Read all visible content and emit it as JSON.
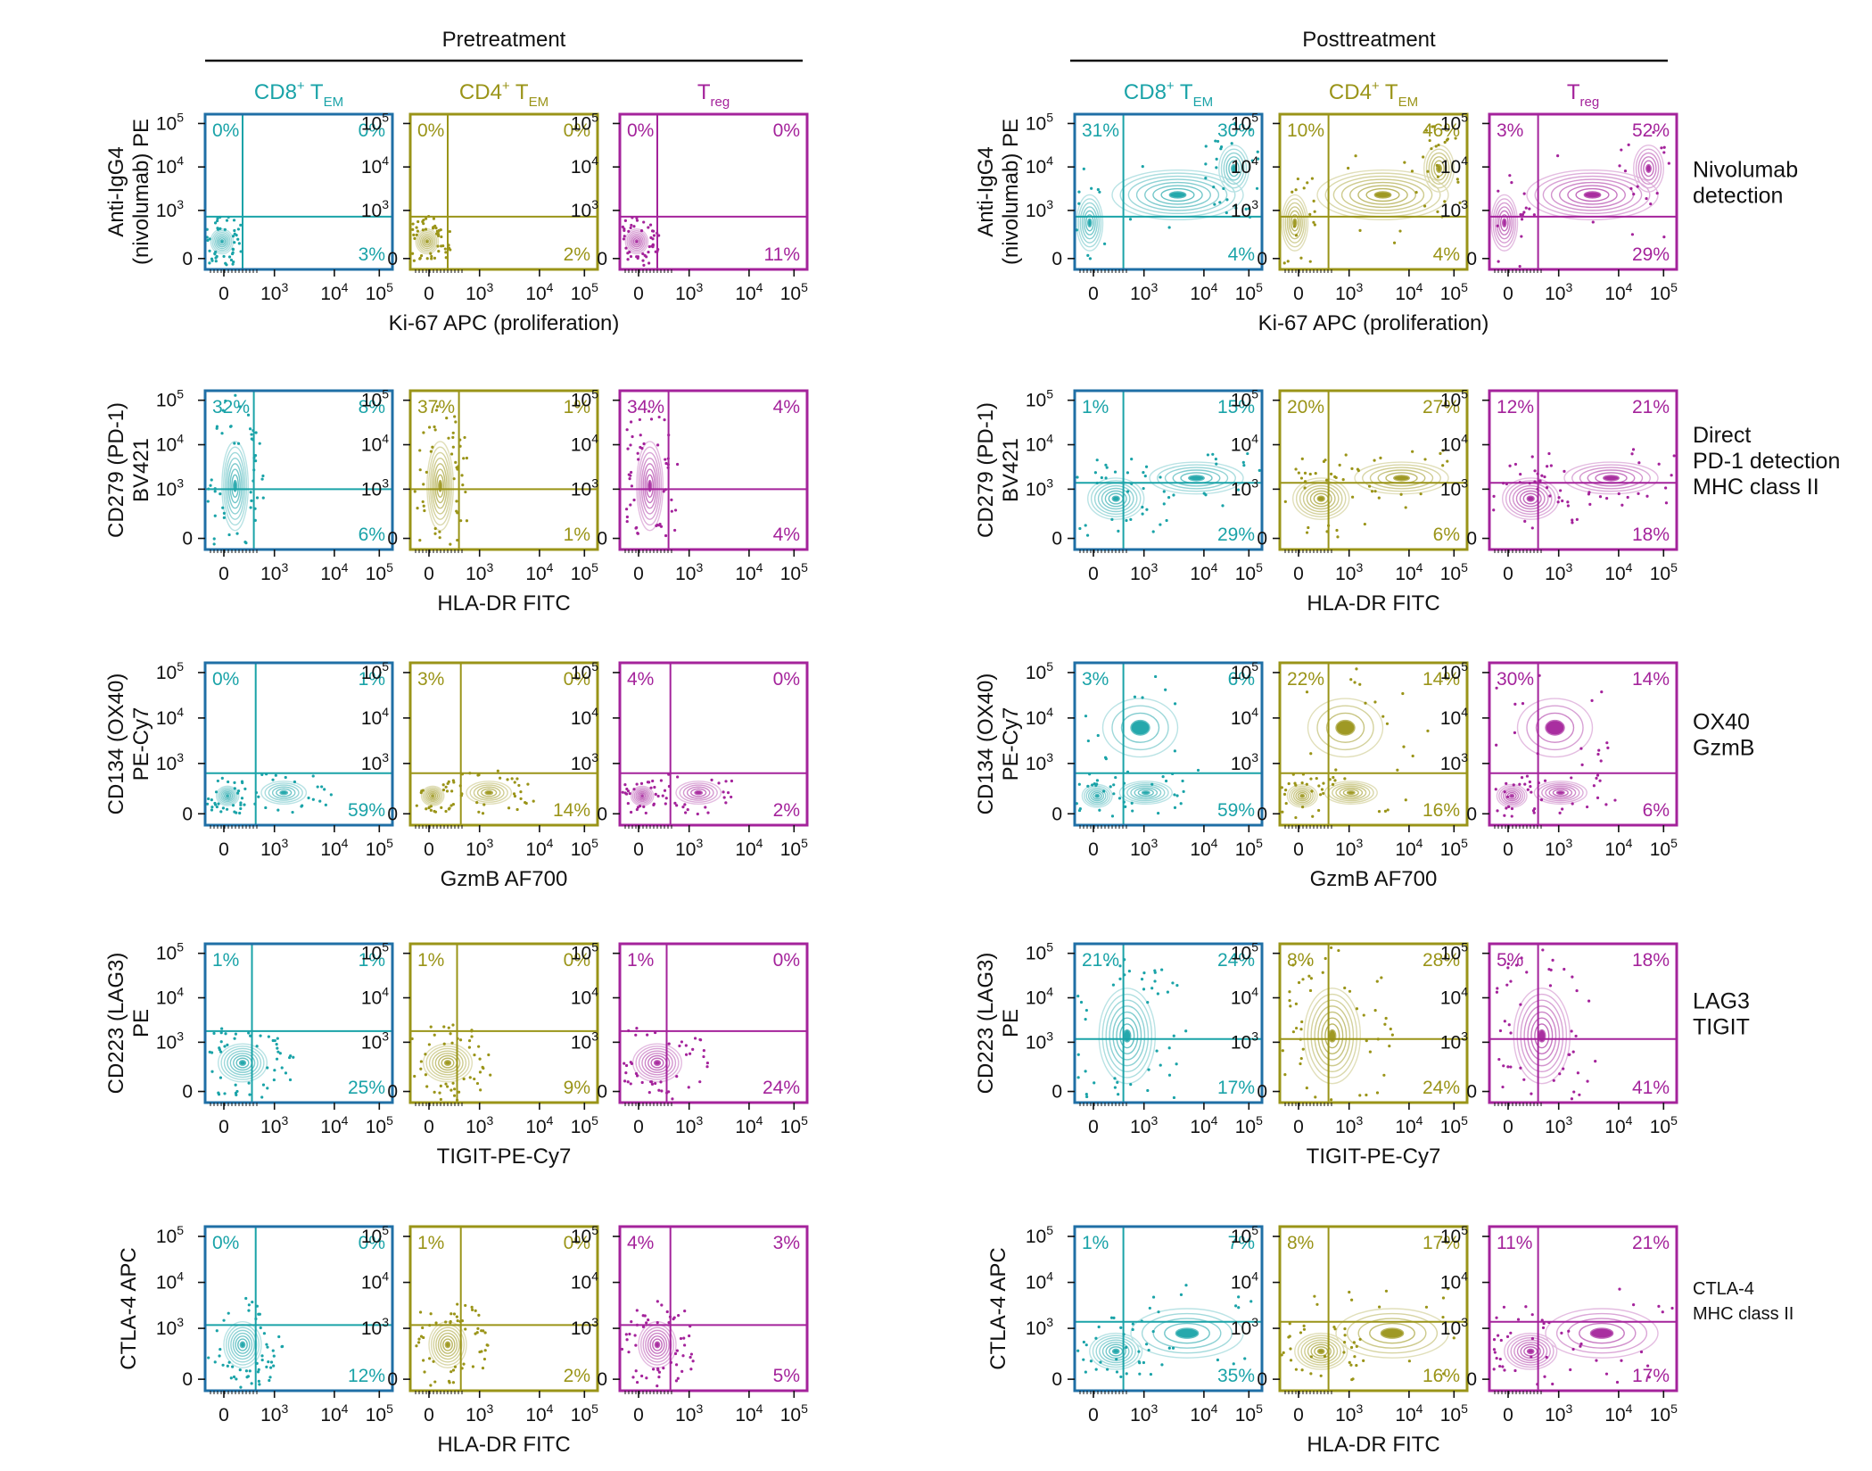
{
  "groups": [
    {
      "title": "Pretreatment"
    },
    {
      "title": "Posttreatment"
    }
  ],
  "populations": [
    {
      "name": "CD8",
      "sup": "+",
      "main": " T",
      "sub": "EM",
      "color": "#1aa3a8",
      "frame": "#1f6fa6"
    },
    {
      "name": "CD4",
      "sup": "+",
      "main": " T",
      "sub": "EM",
      "color": "#9a9418",
      "frame": "#9a9418"
    },
    {
      "name": "T",
      "sup": "",
      "main": "",
      "sub": "reg",
      "color": "#a4239b",
      "frame": "#a4239b"
    }
  ],
  "tick_labels": {
    "zero": "0",
    "base": "10",
    "exps": [
      "3",
      "4",
      "5"
    ]
  },
  "rows": [
    {
      "ylabel": [
        "Anti-IgG4",
        "(nivolumab) PE"
      ],
      "xlabel": "Ki-67 APC (proliferation)",
      "side": [
        "Nivolumab",
        "detection"
      ],
      "side_size": "big",
      "pre": [
        [
          "0%",
          "0%",
          "3%"
        ],
        [
          "0%",
          "0%",
          "2%"
        ],
        [
          "0%",
          "0%",
          "11%"
        ]
      ],
      "post": [
        [
          "31%",
          "30%",
          "4%"
        ],
        [
          "10%",
          "46%",
          "4%"
        ],
        [
          "3%",
          "52%",
          "29%"
        ]
      ]
    },
    {
      "ylabel": [
        "CD279 (PD-1)",
        "BV421"
      ],
      "xlabel": "HLA-DR FITC",
      "side": [
        "Direct",
        "PD-1 detection",
        "MHC class II"
      ],
      "side_size": "big",
      "pre": [
        [
          "32%",
          "8%",
          "6%"
        ],
        [
          "37%",
          "1%",
          "1%"
        ],
        [
          "34%",
          "4%",
          "4%"
        ]
      ],
      "post": [
        [
          "1%",
          "15%",
          "29%"
        ],
        [
          "20%",
          "27%",
          "6%"
        ],
        [
          "12%",
          "21%",
          "18%"
        ]
      ]
    },
    {
      "ylabel": [
        "CD134 (OX40)",
        "PE-Cy7"
      ],
      "xlabel": "GzmB AF700",
      "side": [
        "OX40",
        "GzmB"
      ],
      "side_size": "big",
      "pre": [
        [
          "0%",
          "1%",
          "59%"
        ],
        [
          "3%",
          "0%",
          "14%"
        ],
        [
          "4%",
          "0%",
          "2%"
        ]
      ],
      "post": [
        [
          "3%",
          "6%",
          "59%"
        ],
        [
          "22%",
          "14%",
          "16%"
        ],
        [
          "30%",
          "14%",
          "6%"
        ]
      ]
    },
    {
      "ylabel": [
        "CD223 (LAG3)",
        "PE"
      ],
      "xlabel": "TIGIT-PE-Cy7",
      "side": [
        "LAG3",
        "TIGIT"
      ],
      "side_size": "big",
      "pre": [
        [
          "1%",
          "1%",
          "25%"
        ],
        [
          "1%",
          "0%",
          "9%"
        ],
        [
          "1%",
          "0%",
          "24%"
        ]
      ],
      "post": [
        [
          "21%",
          "24%",
          "17%"
        ],
        [
          "8%",
          "28%",
          "24%"
        ],
        [
          "5%",
          "18%",
          "41%"
        ]
      ]
    },
    {
      "ylabel": [
        "CTLA-4 APC"
      ],
      "xlabel": "HLA-DR FITC",
      "side": [
        "CTLA-4",
        "MHC class II"
      ],
      "side_size": "small",
      "pre": [
        [
          "0%",
          "0%",
          "12%"
        ],
        [
          "1%",
          "0%",
          "2%"
        ],
        [
          "4%",
          "3%",
          "5%"
        ]
      ],
      "post": [
        [
          "1%",
          "7%",
          "35%"
        ],
        [
          "8%",
          "17%",
          "16%"
        ],
        [
          "11%",
          "21%",
          "17%"
        ]
      ]
    }
  ]
}
